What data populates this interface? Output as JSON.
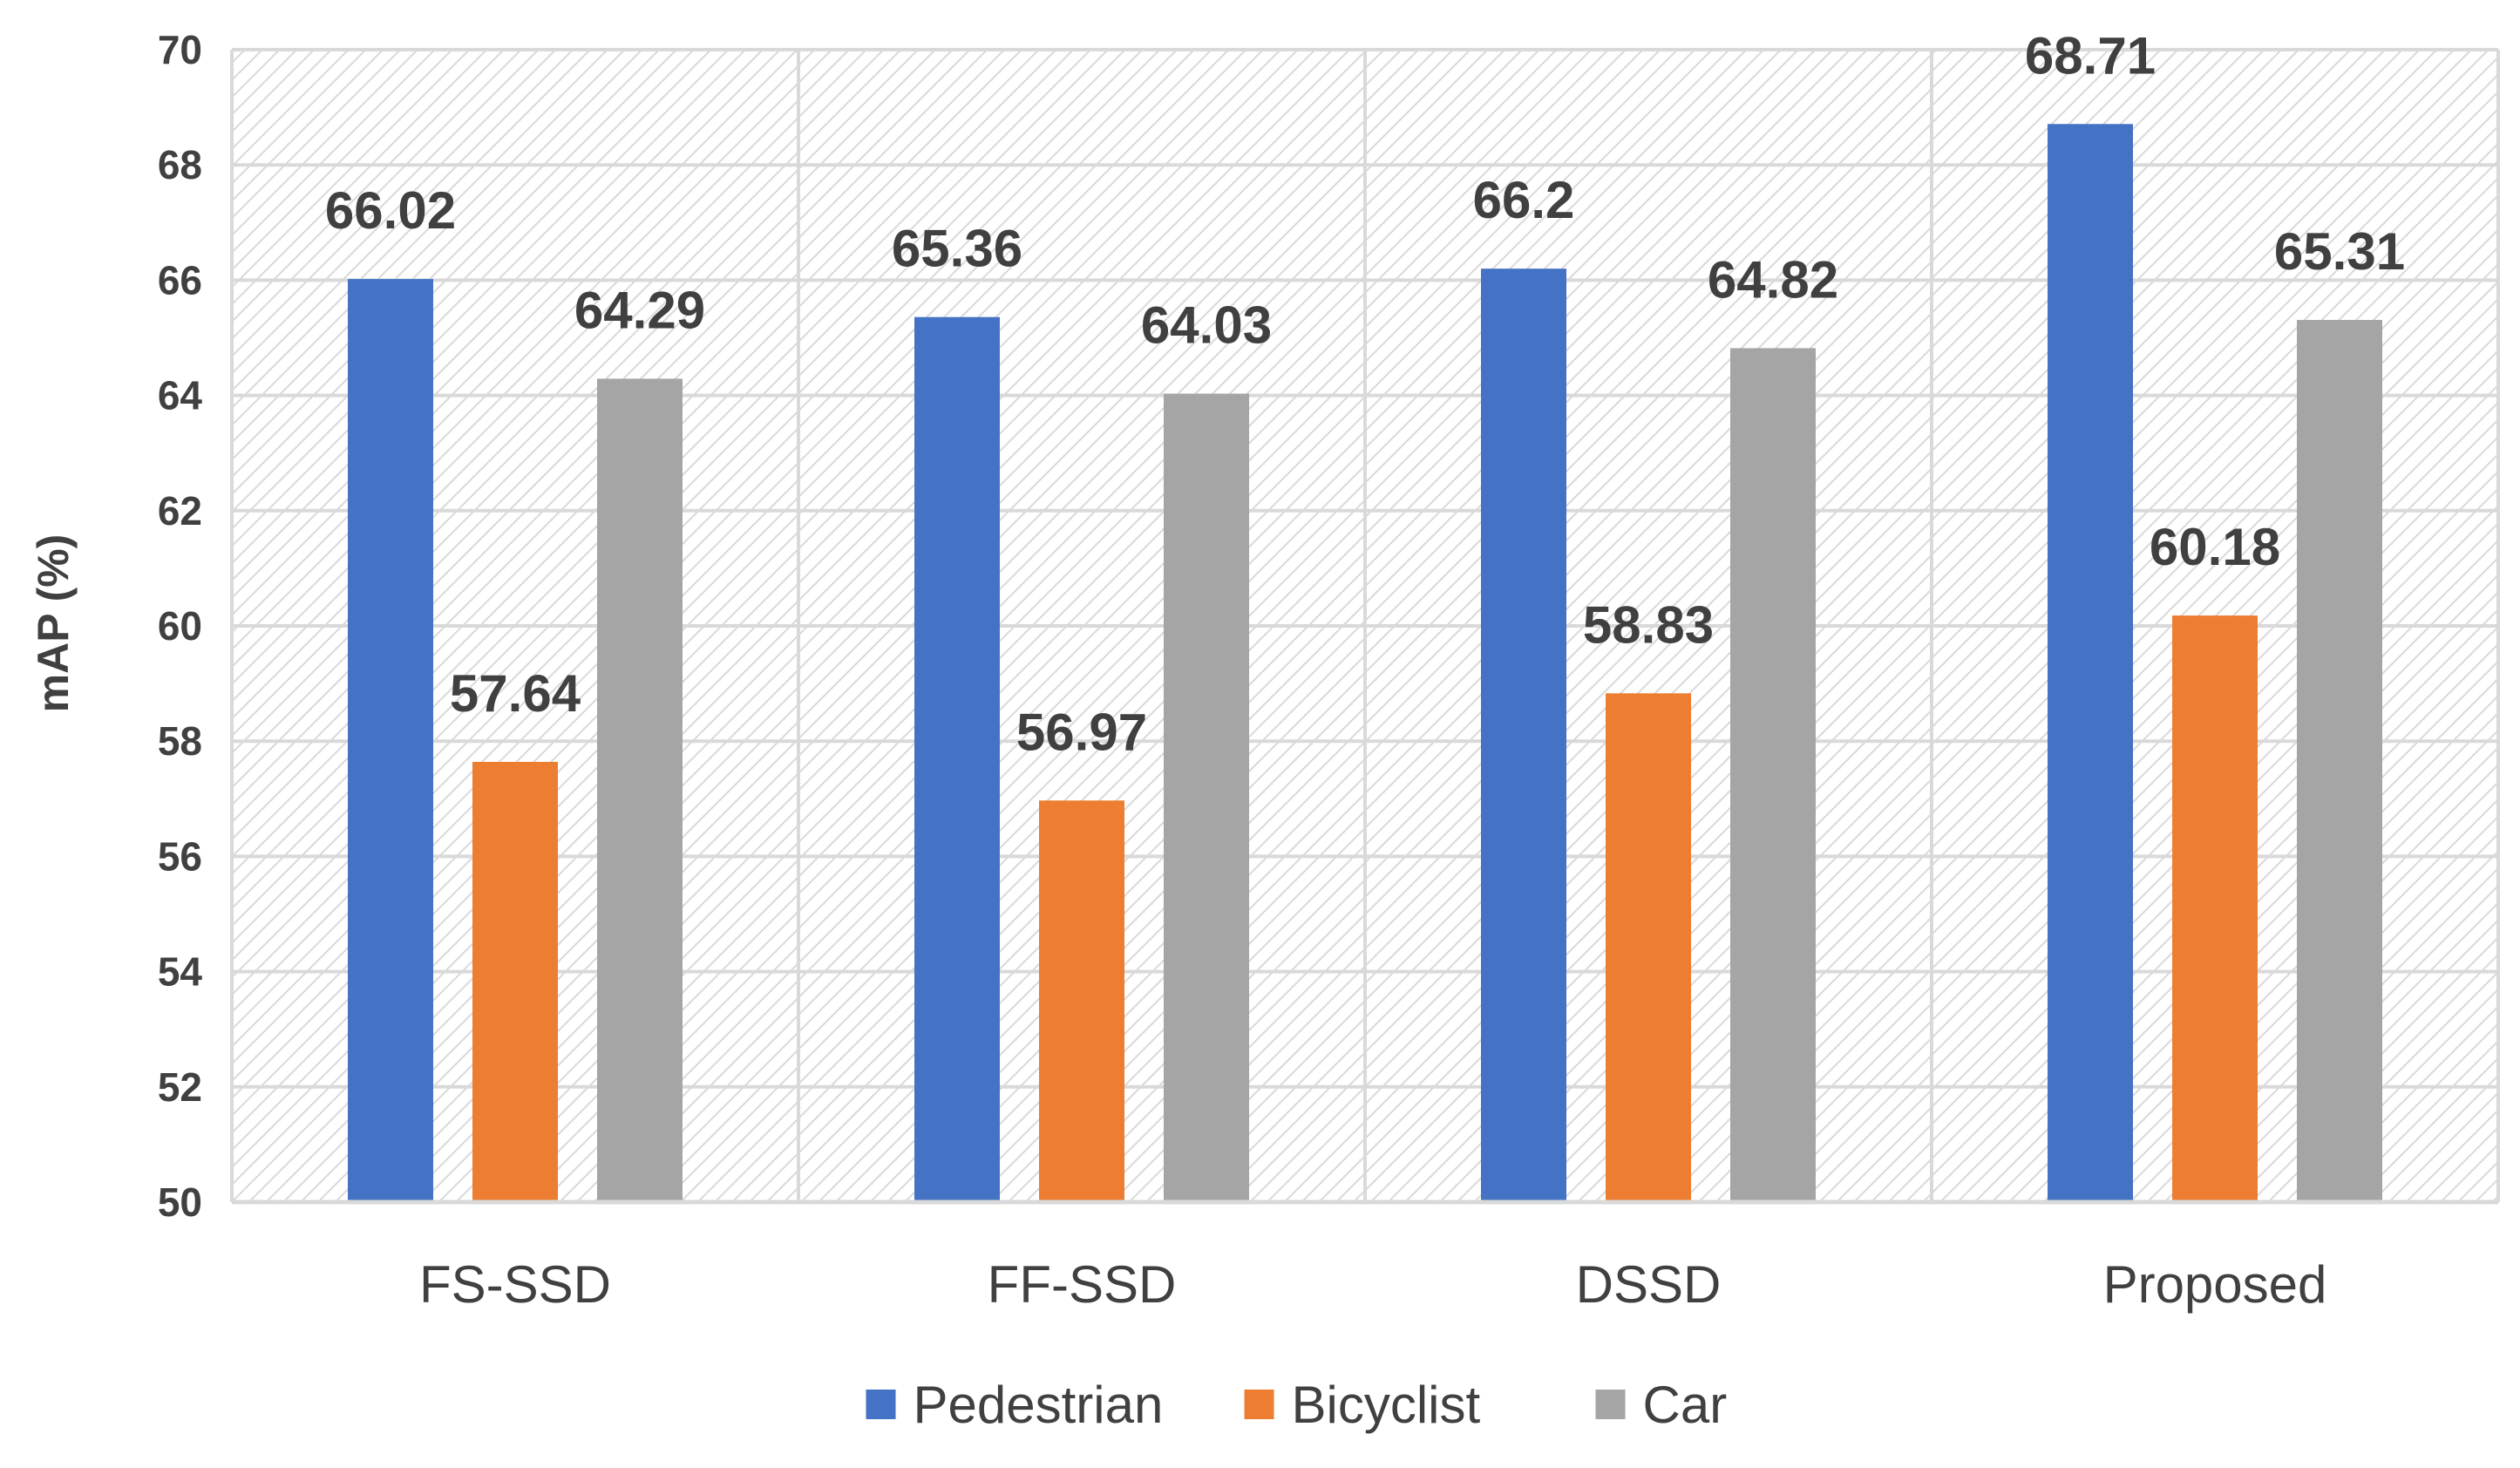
{
  "chart_data": {
    "type": "bar",
    "title": "",
    "xlabel": "",
    "ylabel": "mAP (%)",
    "ylim": [
      50,
      70
    ],
    "yticks": [
      50,
      52,
      54,
      56,
      58,
      60,
      62,
      64,
      66,
      68,
      70
    ],
    "grid": true,
    "legend_position": "bottom",
    "categories": [
      "FS-SSD",
      "FF-SSD",
      "DSSD",
      "Proposed"
    ],
    "series": [
      {
        "name": "Pedestrian",
        "color": "#4472C4",
        "values": [
          66.02,
          65.36,
          66.2,
          68.71
        ],
        "labels": [
          "66.02",
          "65.36",
          "66.2",
          "68.71"
        ]
      },
      {
        "name": "Bicyclist",
        "color": "#ED7D31",
        "values": [
          57.64,
          56.97,
          58.83,
          60.18
        ],
        "labels": [
          "57.64",
          "56.97",
          "58.83",
          "60.18"
        ]
      },
      {
        "name": "Car",
        "color": "#A5A5A5",
        "values": [
          64.29,
          64.03,
          64.82,
          65.31
        ],
        "labels": [
          "64.29",
          "64.03",
          "64.82",
          "65.31"
        ]
      }
    ]
  }
}
